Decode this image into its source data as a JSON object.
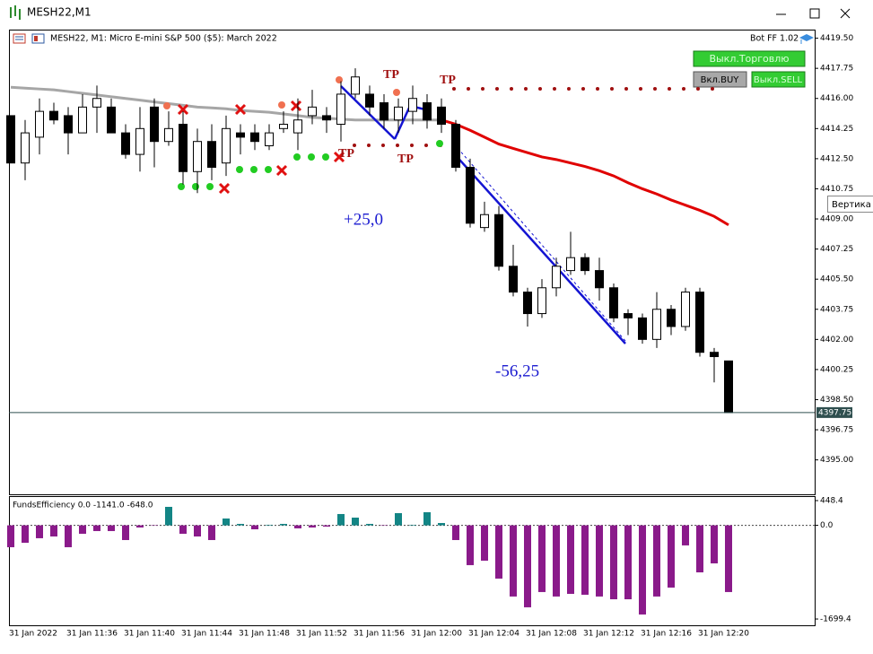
{
  "window": {
    "title": "MESH22,M1",
    "tooltip": "Вертика"
  },
  "panel": {
    "bot": "Bot FF 1.02",
    "buttons": [
      "Выкл.Торговлю",
      "Вкл.BUY",
      "Выкл.SELL"
    ]
  },
  "chart_data": [
    {
      "type": "candlestick",
      "title": "MESH22, M1:  Micro E-mini S&P 500 ($5): March 2022",
      "categories": [
        "31 Jan 2022",
        null,
        null,
        null,
        "31 Jan 11:36",
        null,
        null,
        null,
        "31 Jan 11:40",
        null,
        null,
        null,
        "31 Jan 11:44",
        null,
        null,
        null,
        "31 Jan 11:48",
        null,
        null,
        null,
        "31 Jan 11:52",
        null,
        null,
        null,
        "31 Jan 11:56",
        null,
        null,
        null,
        "31 Jan 12:00",
        null,
        null,
        null,
        "31 Jan 12:04",
        null,
        null,
        null,
        "31 Jan 12:08",
        null,
        null,
        null,
        "31 Jan 12:12",
        null,
        null,
        null,
        "31 Jan 12:16",
        null,
        null,
        null,
        "31 Jan 12:20",
        null,
        null
      ],
      "open": [
        4415.0,
        4412.25,
        4413.75,
        4415.25,
        4415.0,
        4414.0,
        4415.5,
        4415.5,
        4414.0,
        4412.75,
        4415.5,
        4413.5,
        4414.5,
        4411.75,
        4413.5,
        4412.25,
        4414.0,
        4414.0,
        4413.25,
        4414.25,
        4414.0,
        4415.0,
        4415.0,
        4414.5,
        4416.25,
        4416.25,
        4415.75,
        4414.75,
        4415.25,
        4415.75,
        4415.5,
        4414.5,
        4412.0,
        4408.5,
        4409.25,
        4406.25,
        4404.75,
        4403.5,
        4405.0,
        4406.0,
        4406.75,
        4406.0,
        4405.0,
        4403.5,
        4403.25,
        4402.0,
        4403.75,
        4402.75,
        4404.75,
        4401.25,
        4400.75
      ],
      "high": [
        4415.0,
        4414.75,
        4416.0,
        4415.75,
        4415.5,
        4416.25,
        4416.75,
        4416.0,
        4414.5,
        4415.5,
        4416.0,
        4415.25,
        4415.25,
        4414.25,
        4414.5,
        4415.0,
        4414.5,
        4414.5,
        4414.5,
        4415.25,
        4416.0,
        4416.5,
        4415.5,
        4417.0,
        4417.75,
        4416.75,
        4416.25,
        4416.0,
        4416.75,
        4416.25,
        4416.0,
        4414.75,
        4412.5,
        4410.0,
        4409.75,
        4407.5,
        4405.0,
        4405.5,
        4406.75,
        4408.25,
        4407.0,
        4406.75,
        4405.25,
        4403.75,
        4403.5,
        4404.75,
        4404.0,
        4405.0,
        4405.0,
        4401.5,
        4400.75
      ],
      "low": [
        4412.25,
        4411.25,
        4412.75,
        4414.5,
        4412.75,
        4414.0,
        4414.0,
        4414.0,
        4412.5,
        4411.75,
        4412.0,
        4413.25,
        4411.0,
        4410.5,
        4411.25,
        4411.5,
        4412.75,
        4413.0,
        4413.0,
        4414.0,
        4413.0,
        4414.5,
        4414.0,
        4413.5,
        4416.0,
        4415.0,
        4414.25,
        4414.0,
        4414.5,
        4414.25,
        4414.0,
        4411.75,
        4408.5,
        4408.25,
        4406.0,
        4404.5,
        4402.75,
        4403.25,
        4404.5,
        4405.75,
        4405.75,
        4404.25,
        4403.0,
        4402.25,
        4401.75,
        4401.5,
        4402.25,
        4402.5,
        4401.0,
        4399.5,
        4397.75
      ],
      "close": [
        4412.25,
        4414.0,
        4415.25,
        4414.75,
        4414.0,
        4415.5,
        4416.0,
        4414.0,
        4412.75,
        4414.25,
        4413.5,
        4414.25,
        4411.75,
        4413.5,
        4412.0,
        4414.25,
        4413.75,
        4413.5,
        4414.0,
        4414.5,
        4414.75,
        4415.5,
        4414.75,
        4416.25,
        4417.25,
        4415.5,
        4414.75,
        4415.5,
        4416.0,
        4414.75,
        4414.5,
        4412.0,
        4408.75,
        4409.25,
        4406.25,
        4404.75,
        4403.5,
        4405.0,
        4406.25,
        4406.75,
        4406.0,
        4405.0,
        4403.25,
        4403.25,
        4402.0,
        4403.75,
        4402.75,
        4404.75,
        4401.25,
        4401.0,
        4397.75
      ],
      "up_color": "#ffffff",
      "down_color": "#000000",
      "lines": [
        {
          "color": "#a6a6a6",
          "values": [
            4416.65,
            4416.6,
            4416.55,
            4416.5,
            4416.4,
            4416.3,
            4416.2,
            4416.1,
            4416.0,
            4415.9,
            4415.8,
            4415.7,
            4415.6,
            4415.5,
            4415.45,
            4415.4,
            4415.3,
            4415.25,
            4415.2,
            4415.1,
            4415.0,
            4414.9,
            4414.85,
            4414.8,
            4414.75,
            4414.75,
            4414.75,
            4414.75,
            4414.75,
            4414.75,
            4414.75,
            null,
            null,
            null,
            null,
            null,
            null,
            null,
            null,
            null,
            null,
            null,
            null,
            null,
            null,
            null,
            null,
            null,
            null,
            null,
            null
          ]
        },
        {
          "color": "#e00000",
          "values": [
            null,
            null,
            null,
            null,
            null,
            null,
            null,
            null,
            null,
            null,
            null,
            null,
            null,
            null,
            null,
            null,
            null,
            null,
            null,
            null,
            null,
            null,
            null,
            null,
            null,
            null,
            null,
            null,
            null,
            null,
            4414.75,
            4414.5,
            4414.15,
            4413.75,
            4413.35,
            4413.1,
            4412.85,
            4412.6,
            4412.45,
            4412.25,
            4412.05,
            4411.8,
            4411.5,
            4411.1,
            4410.75,
            4410.45,
            4410.1,
            4409.8,
            4409.5,
            4409.15,
            4408.65
          ]
        }
      ],
      "annotations": [
        "+25,0",
        "-56,25",
        "TP",
        "TP",
        "TP",
        "TP"
      ],
      "last_price": {
        "value": 4397.75,
        "label": "4397.75"
      },
      "ylim": [
        4393.0,
        4420.0
      ],
      "yticks": [
        {
          "value": 4419.5,
          "label": "4419.50"
        },
        {
          "value": 4417.75,
          "label": "4417.75"
        },
        {
          "value": 4416.0,
          "label": "4416.00"
        },
        {
          "value": 4414.25,
          "label": "4414.25"
        },
        {
          "value": 4412.5,
          "label": "4412.50"
        },
        {
          "value": 4410.75,
          "label": "4410.75"
        },
        {
          "value": 4409.0,
          "label": "4409.00"
        },
        {
          "value": 4407.25,
          "label": "4407.25"
        },
        {
          "value": 4405.5,
          "label": "4405.50"
        },
        {
          "value": 4403.75,
          "label": "4403.75"
        },
        {
          "value": 4402.0,
          "label": "4402.00"
        },
        {
          "value": 4400.25,
          "label": "4400.25"
        },
        {
          "value": 4398.5,
          "label": "4398.50"
        },
        {
          "value": 4396.75,
          "label": "4396.75"
        },
        {
          "value": 4395.0,
          "label": "4395.00"
        }
      ],
      "grid": false
    },
    {
      "type": "bar",
      "title": "FundsEfficiency 0.0 -1141.0 -648.0",
      "values": [
        -397,
        -316,
        -234,
        -202,
        -397,
        -153,
        -104,
        -104,
        -267,
        -39,
        -7,
        335,
        -153,
        -202,
        -267,
        124,
        26,
        -72,
        10,
        26,
        -55,
        -39,
        -23,
        205,
        140,
        26,
        -7,
        221,
        10,
        238,
        42,
        -267,
        -722,
        -641,
        -966,
        -1291,
        -1487,
        -1210,
        -1291,
        -1243,
        -1259,
        -1291,
        -1341,
        -1341,
        -1617,
        -1291,
        -1129,
        -364,
        -853,
        -690,
        -1210
      ],
      "positive_color": "#138585",
      "negative_color": "#8a1a8a",
      "ylim": [
        -1813,
        530
      ],
      "yticks": [
        {
          "value": 448.4,
          "label": "448.4"
        },
        {
          "value": 0,
          "label": "0.0"
        },
        {
          "value": -1699.4,
          "label": "-1699.4"
        }
      ],
      "zero_line": true
    }
  ]
}
